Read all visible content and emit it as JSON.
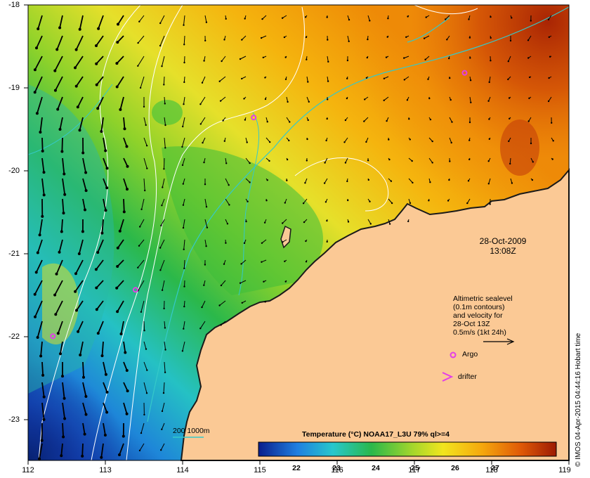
{
  "map": {
    "lon_ticks": [
      "112",
      "113",
      "114",
      "115",
      "116",
      "117",
      "118",
      "119"
    ],
    "lat_ticks": [
      "-18",
      "-19",
      "-20",
      "-21",
      "-22",
      "-23"
    ],
    "lon_range": [
      112,
      119
    ],
    "lat_range": [
      -18,
      -23.5
    ],
    "date_line1": "28-Oct-2009",
    "date_line2": "13:08Z",
    "contour_legend": "200  1000m",
    "legend": {
      "l1": "Altimetric sealevel",
      "l2": "(0.1m contours)",
      "l3": "and velocity for",
      "l4": "28-Oct 13Z",
      "l5": "0.5m/s (1kt 24h)",
      "argo": "Argo",
      "drifter": "drifter"
    },
    "colorbar": {
      "title": "Temperature (°C) NOAA17_L3U 79% ql>=4",
      "ticks": [
        "22",
        "23",
        "24",
        "25",
        "26",
        "27"
      ]
    },
    "credit": "© IMOS 04-Apr-2015 04:44:16 Hobart time",
    "argo_floats": [
      {
        "lon": 114.92,
        "lat": -19.36
      },
      {
        "lon": 117.65,
        "lat": -18.82
      },
      {
        "lon": 113.39,
        "lat": -21.44
      },
      {
        "lon": 112.32,
        "lat": -22.0
      }
    ],
    "colors": {
      "land": "#fbc995",
      "coast": "#222222",
      "contour_white": "#ffffff",
      "contour_cyan": "#35c9c9",
      "argo": "#e33ee8"
    }
  }
}
